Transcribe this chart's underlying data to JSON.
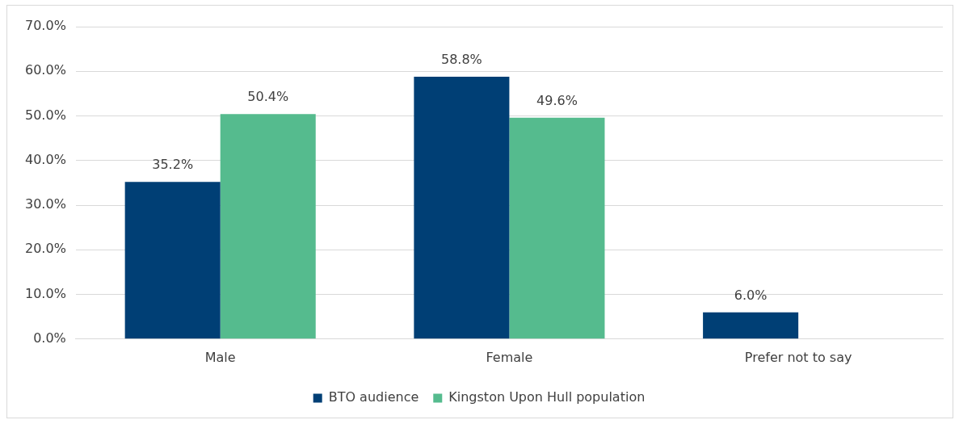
{
  "chart_data": {
    "type": "bar",
    "categories": [
      "Male",
      "Female",
      "Prefer not to say"
    ],
    "series": [
      {
        "name": "BTO audience",
        "color": "#003f75",
        "values": [
          35.2,
          58.8,
          6.0
        ],
        "value_labels": [
          "35.2%",
          "58.8%",
          "6.0%"
        ]
      },
      {
        "name": "Kingston Upon Hull population",
        "color": "#55bb8e",
        "values": [
          50.4,
          49.6,
          null
        ],
        "value_labels": [
          "50.4%",
          "49.6%",
          null
        ]
      }
    ],
    "ylim": [
      0,
      70
    ],
    "yticks": [
      {
        "value": 0,
        "label": "0.0%"
      },
      {
        "value": 10,
        "label": "10.0%"
      },
      {
        "value": 20,
        "label": "20.0%"
      },
      {
        "value": 30,
        "label": "30.0%"
      },
      {
        "value": 40,
        "label": "40.0%"
      },
      {
        "value": 50,
        "label": "50.0%"
      },
      {
        "value": 60,
        "label": "60.0%"
      },
      {
        "value": 70,
        "label": "70.0%"
      }
    ],
    "grid": "y",
    "legend": "bottom"
  }
}
